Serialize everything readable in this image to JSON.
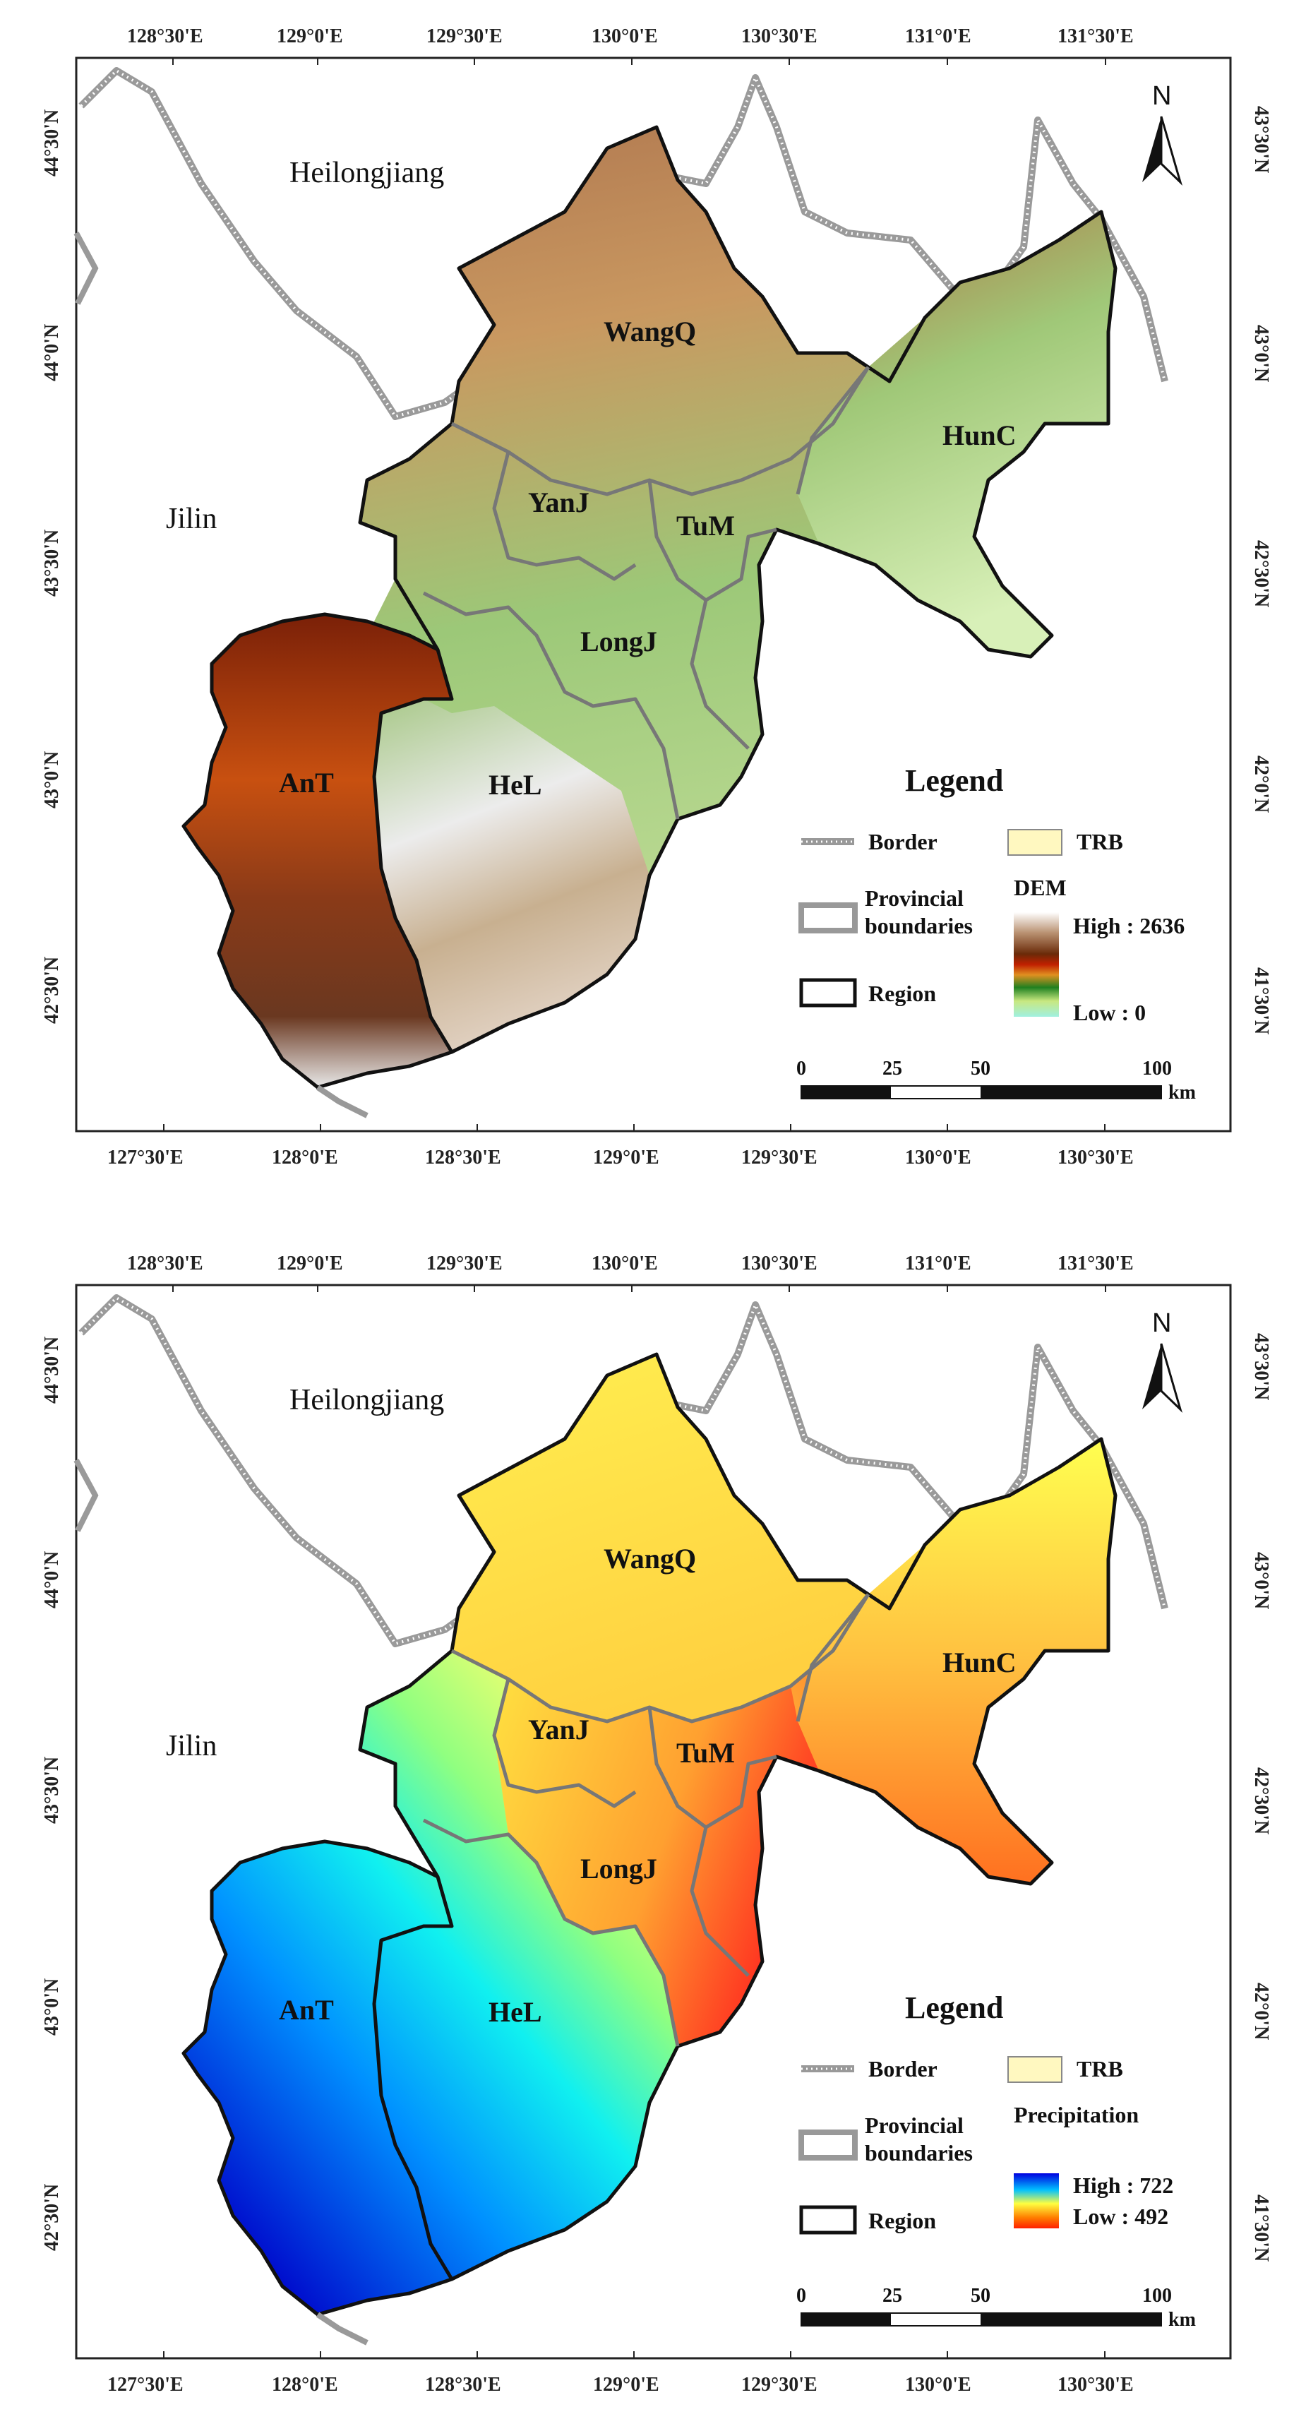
{
  "maps": [
    {
      "id": "dem",
      "top_ticks": [
        "128°30'E",
        "129°0'E",
        "129°30'E",
        "130°0'E",
        "130°30'E",
        "131°0'E",
        "131°30'E"
      ],
      "bottom_ticks": [
        "127°30'E",
        "128°0'E",
        "128°30'E",
        "129°0'E",
        "129°30'E",
        "130°0'E",
        "130°30'E"
      ],
      "left_ticks": [
        "44°30'N",
        "44°0'N",
        "43°30'N",
        "43°0'N",
        "42°30'N"
      ],
      "right_ticks": [
        "43°30'N",
        "43°0'N",
        "42°30'N",
        "42°0'N",
        "41°30'N"
      ],
      "outer_labels": {
        "heilongjiang": "Heilongjiang",
        "jilin": "Jilin"
      },
      "regions": {
        "wangq": "WangQ",
        "hunc": "HunC",
        "yanj": "YanJ",
        "tum": "TuM",
        "longj": "LongJ",
        "ant": "AnT",
        "hel": "HeL"
      },
      "north": "N",
      "legend": {
        "title": "Legend",
        "border": "Border",
        "trb": "TRB",
        "provincial_1": "Provincial",
        "provincial_2": "boundaries",
        "region": "Region",
        "ramp_title": "DEM",
        "high": "High : 2636",
        "low": "Low : 0"
      },
      "scale": {
        "l0": "0",
        "l25": "25",
        "l50": "50",
        "l100": "100",
        "unit": "km"
      },
      "ramp_colors": [
        "#ffffff",
        "#c8b8a0",
        "#7a3a10",
        "#b02000",
        "#e08020",
        "#208020",
        "#80c040",
        "#d0e890",
        "#a0f0e0"
      ]
    },
    {
      "id": "precip",
      "top_ticks": [
        "128°30'E",
        "129°0'E",
        "129°30'E",
        "130°0'E",
        "130°30'E",
        "131°0'E",
        "131°30'E"
      ],
      "bottom_ticks": [
        "127°30'E",
        "128°0'E",
        "128°30'E",
        "129°0'E",
        "129°30'E",
        "130°0'E",
        "130°30'E"
      ],
      "left_ticks": [
        "44°30'N",
        "44°0'N",
        "43°30'N",
        "43°0'N",
        "42°30'N"
      ],
      "right_ticks": [
        "43°30'N",
        "43°0'N",
        "42°30'N",
        "42°0'N",
        "41°30'N"
      ],
      "outer_labels": {
        "heilongjiang": "Heilongjiang",
        "jilin": "Jilin"
      },
      "regions": {
        "wangq": "WangQ",
        "hunc": "HunC",
        "yanj": "YanJ",
        "tum": "TuM",
        "longj": "LongJ",
        "ant": "AnT",
        "hel": "HeL"
      },
      "north": "N",
      "legend": {
        "title": "Legend",
        "border": "Border",
        "trb": "TRB",
        "provincial_1": "Provincial",
        "provincial_2": "boundaries",
        "region": "Region",
        "ramp_title": "Precipitation",
        "high": "High : 722",
        "low": "Low : 492"
      },
      "scale": {
        "l0": "0",
        "l25": "25",
        "l50": "50",
        "l100": "100",
        "unit": "km"
      },
      "ramp_colors": [
        "#0000e0",
        "#00c0ff",
        "#ffff40",
        "#ff8000",
        "#ff2000"
      ]
    }
  ],
  "colors": {
    "trb": "#fff8c0",
    "frame": "#222222",
    "border": "#999999"
  }
}
